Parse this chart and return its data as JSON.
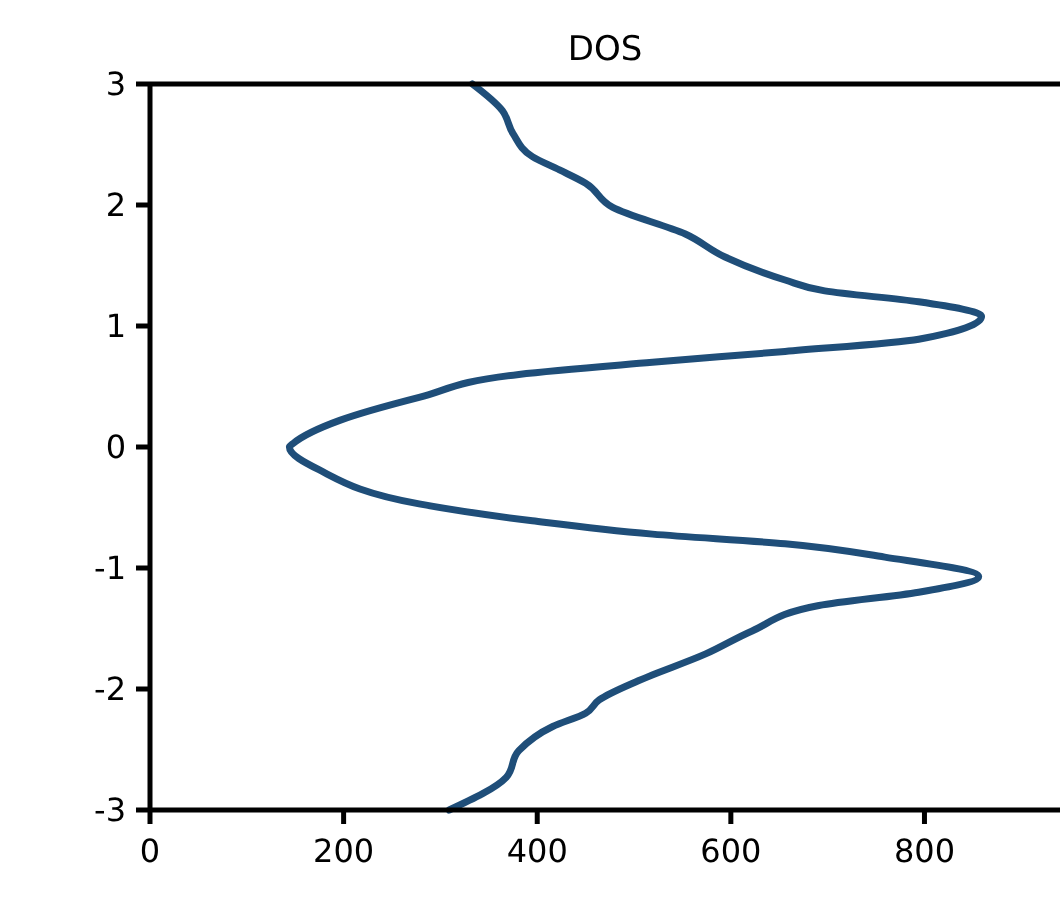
{
  "chart_data": {
    "type": "line",
    "title": "DOS",
    "xlim": [
      0,
      940
    ],
    "xticks": [
      0,
      200,
      400,
      600,
      800
    ],
    "ylim": [
      -3,
      3
    ],
    "yticks": [
      -3,
      -2,
      -1,
      0,
      1,
      2,
      3
    ],
    "grid": false,
    "marker": "none",
    "line_style": "solid",
    "series": [
      {
        "color": "#1f4e79",
        "x": [
          333,
          364,
          375,
          395,
          423,
          450,
          478,
          553,
          594,
          656,
          697,
          794,
          859,
          794,
          656,
          519,
          381,
          278,
          196,
          148,
          144,
          175,
          278,
          395,
          519,
          656,
          759,
          856,
          794,
          691,
          622,
          574,
          505,
          464,
          450,
          416,
          381,
          368,
          309
        ],
        "values": [
          3,
          2.78,
          2.59,
          2.4,
          2.29,
          2.18,
          1.98,
          1.76,
          1.57,
          1.38,
          1.29,
          1.2,
          1.08,
          0.89,
          0.79,
          0.7,
          0.6,
          0.41,
          0.22,
          0.03,
          0,
          -0.19,
          -0.47,
          -0.61,
          -0.72,
          -0.8,
          -0.91,
          -1.07,
          -1.2,
          -1.31,
          -1.52,
          -1.71,
          -1.93,
          -2.09,
          -2.2,
          -2.31,
          -2.51,
          -2.73,
          -3
        ]
      }
    ]
  }
}
